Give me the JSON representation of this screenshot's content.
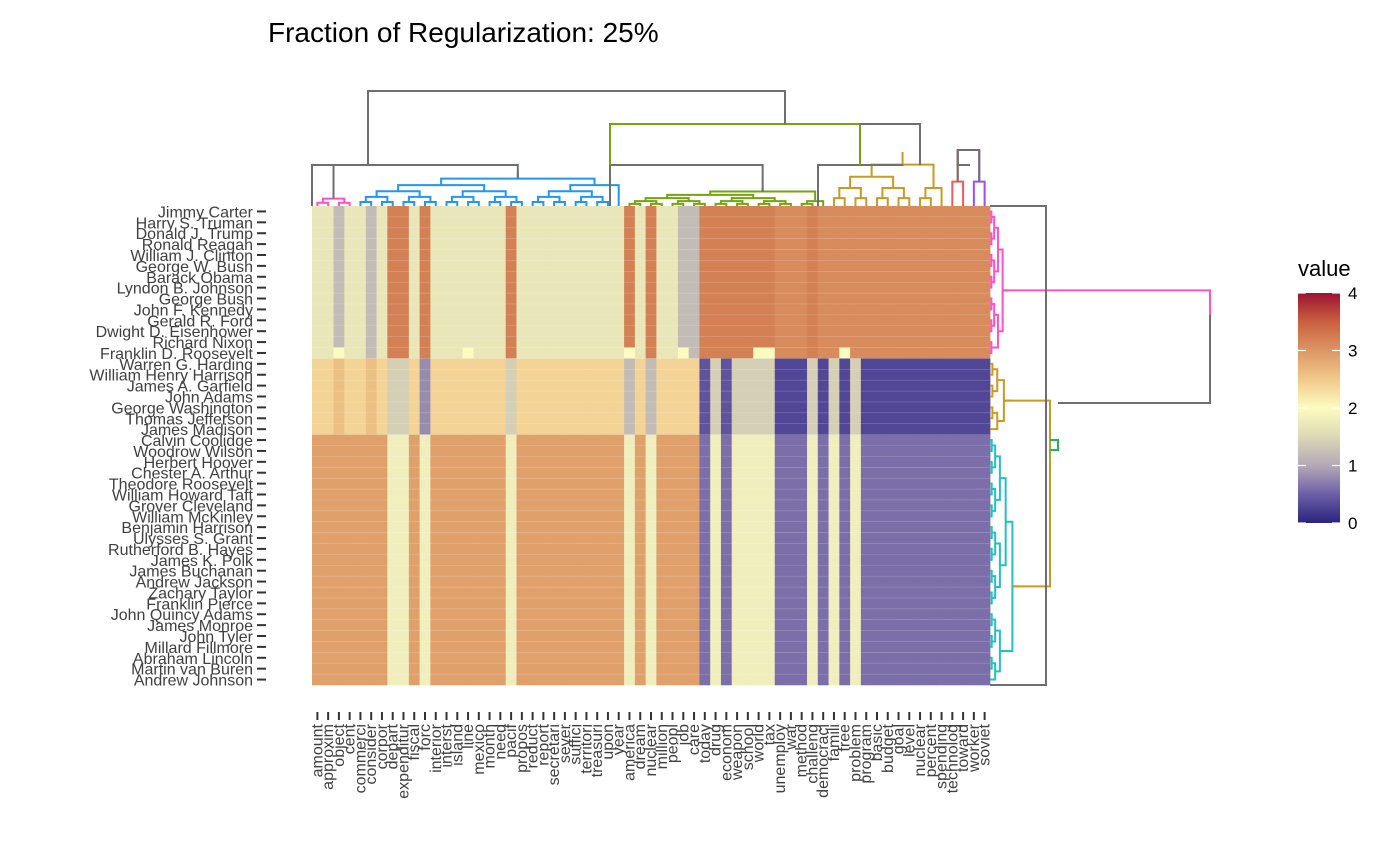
{
  "chart_data": {
    "type": "heatmap",
    "title": "Fraction of Regularization: 25%",
    "legend": {
      "title": "value",
      "ticks": [
        0,
        1,
        2,
        3,
        4
      ],
      "position": "right",
      "range": [
        0,
        4
      ]
    },
    "colors": {
      "scale": [
        "#2a237f",
        "#6d5fa6",
        "#b3a9b6",
        "#dcd8b5",
        "#fdfcc0",
        "#f0c98b",
        "#dc9664",
        "#c9603f",
        "#9e1230"
      ],
      "dendro_row_groups": [
        "#ff50c8",
        "#c99a22",
        "#24c0c0",
        "#22b45a"
      ],
      "dendro_col_groups": [
        "#ff50c8",
        "#2196f3",
        "#74a40c",
        "#c99a22",
        "#f05a5a",
        "#a04cf0"
      ],
      "dendro_trunk": "#6f6f6f"
    },
    "rows": [
      "Jimmy Carter",
      "Harry S. Truman",
      "Donald J. Trump",
      "Ronald Reagan",
      "William J. Clinton",
      "George W. Bush",
      "Barack Obama",
      "Lyndon B. Johnson",
      "George Bush",
      "John F. Kennedy",
      "Gerald R. Ford",
      "Dwight D. Eisenhower",
      "Richard Nixon",
      "Franklin D. Roosevelt",
      "Warren G. Harding",
      "William Henry Harrison",
      "James A. Garfield",
      "John Adams",
      "George Washington",
      "Thomas Jefferson",
      "James Madison",
      "Calvin Coolidge",
      "Woodrow Wilson",
      "Herbert Hoover",
      "Chester A. Arthur",
      "Theodore Roosevelt",
      "William Howard Taft",
      "Grover Cleveland",
      "William McKinley",
      "Benjamin Harrison",
      "Ulysses S. Grant",
      "Rutherford B. Hayes",
      "James K. Polk",
      "James Buchanan",
      "Andrew Jackson",
      "Zachary Taylor",
      "Franklin Pierce",
      "John Quincy Adams",
      "James Monroe",
      "John Tyler",
      "Millard Fillmore",
      "Abraham Lincoln",
      "Martin van Buren",
      "Andrew Johnson"
    ],
    "columns": [
      "amount",
      "approxim",
      "object",
      "cent",
      "commerci",
      "consider",
      "corpor",
      "depart",
      "expenditur",
      "fiscal",
      "forc",
      "interior",
      "interst",
      "island",
      "line",
      "mexico",
      "month",
      "need",
      "pacif",
      "propos",
      "reduct",
      "report",
      "secretari",
      "sever",
      "suffici",
      "territori",
      "treasuri",
      "upon",
      "year",
      "america",
      "dream",
      "nuclear",
      "million",
      "peopl",
      "job",
      "care",
      "today",
      "drug",
      "econom",
      "weapon",
      "school",
      "world",
      "tax",
      "unemploy",
      "war",
      "method",
      "challeng",
      "democraci",
      "famili",
      "free",
      "problem",
      "program",
      "basic",
      "budget",
      "goal",
      "level",
      "nuclear",
      "percent",
      "spending",
      "technolog",
      "toward",
      "worker",
      "soviet"
    ],
    "row_groups": [
      14,
      7,
      23
    ],
    "column_profiles": {
      "group1": [
        1.7,
        1.7,
        1.2,
        1.7,
        1.7,
        1.2,
        1.7,
        3.2,
        3.2,
        1.7,
        3.2,
        1.7,
        1.7,
        1.7,
        1.7,
        1.7,
        1.7,
        1.7,
        3.2,
        1.7,
        1.7,
        1.7,
        1.7,
        1.7,
        1.7,
        1.7,
        1.7,
        1.7,
        1.7,
        3.2,
        1.7,
        3.2,
        1.7,
        1.7,
        1.2,
        1.2,
        3.2,
        3.2,
        3.2,
        3.2,
        3.2,
        3.2,
        3.2,
        3.1,
        3.1,
        3.1,
        3.2,
        3.1,
        3.1,
        3.1,
        3.1,
        3.1,
        3.1,
        3.1,
        3.1,
        3.1,
        3.1,
        3.1,
        3.1,
        3.1,
        3.1,
        3.1,
        3.1
      ],
      "group2": [
        2.4,
        2.4,
        2.6,
        2.4,
        2.4,
        2.6,
        2.4,
        1.4,
        1.4,
        2.4,
        0.8,
        2.4,
        2.4,
        2.4,
        2.4,
        2.4,
        2.4,
        2.4,
        1.4,
        2.4,
        2.4,
        2.4,
        2.4,
        2.4,
        2.4,
        2.4,
        2.4,
        2.4,
        2.4,
        1.2,
        2.4,
        1.2,
        2.4,
        2.4,
        2.4,
        2.4,
        0.4,
        1.4,
        0.4,
        1.4,
        1.4,
        1.4,
        1.4,
        0.3,
        0.3,
        0.3,
        1.4,
        0.3,
        1.4,
        0.3,
        1.4,
        0.3,
        0.3,
        0.3,
        0.3,
        0.3,
        0.3,
        0.3,
        0.3,
        0.3,
        0.3,
        0.3,
        0.3
      ],
      "group3": [
        2.9,
        2.9,
        2.9,
        2.9,
        2.9,
        2.9,
        2.9,
        1.8,
        1.8,
        2.9,
        1.8,
        2.9,
        2.9,
        2.9,
        2.9,
        2.9,
        2.9,
        2.9,
        1.8,
        2.9,
        2.9,
        2.9,
        2.9,
        2.9,
        2.9,
        2.9,
        2.9,
        2.9,
        2.9,
        1.8,
        2.9,
        1.8,
        2.9,
        2.9,
        2.9,
        2.9,
        0.6,
        1.8,
        0.6,
        1.8,
        1.8,
        1.8,
        1.8,
        0.6,
        0.6,
        0.6,
        1.8,
        0.6,
        1.8,
        0.6,
        1.8,
        0.6,
        0.6,
        0.6,
        0.6,
        0.6,
        0.6,
        0.6,
        0.6,
        0.6,
        0.6,
        0.6,
        0.6
      ]
    },
    "row_14_bright_columns": [
      "object",
      "line",
      "america",
      "job",
      "world",
      "tax",
      "free"
    ]
  }
}
